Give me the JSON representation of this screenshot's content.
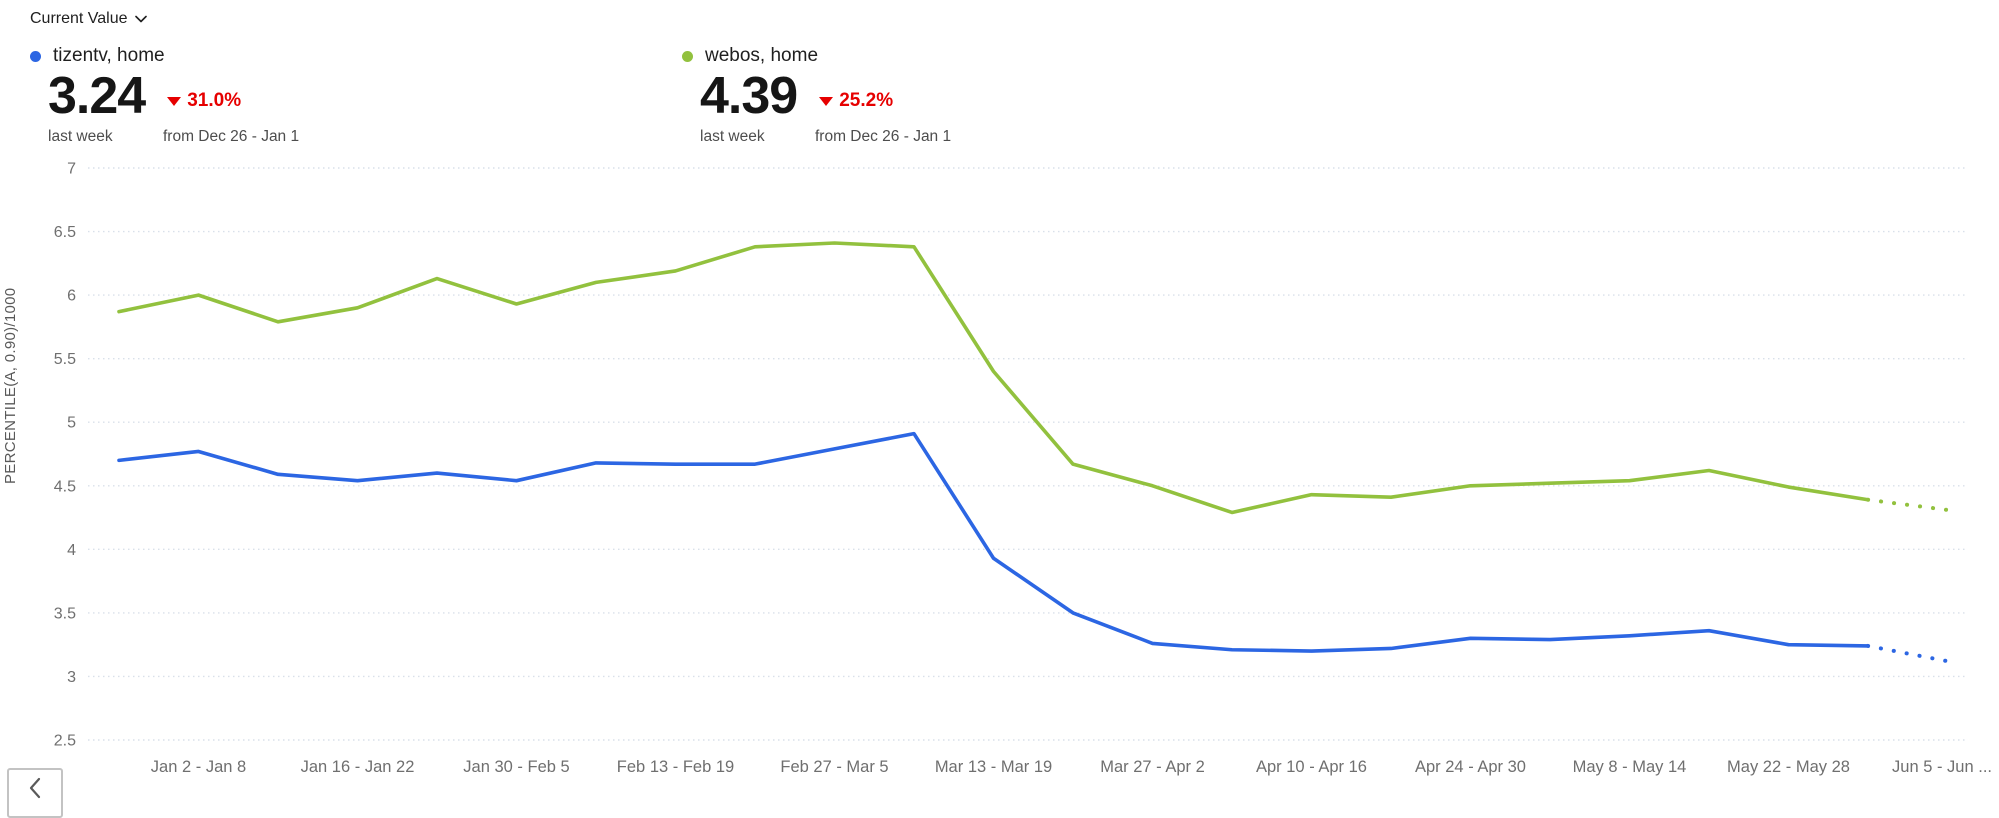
{
  "header": {
    "metric_selector_label": "Current Value"
  },
  "metrics": [
    {
      "series": "tizentv, home",
      "dot_color": "#2c66e3",
      "value": "3.24",
      "delta_direction": "down",
      "delta_pct": "31.0%",
      "period": "last week",
      "comparison": "from Dec 26 - Jan 1"
    },
    {
      "series": "webos, home",
      "dot_color": "#92c13e",
      "value": "4.39",
      "delta_direction": "down",
      "delta_pct": "25.2%",
      "period": "last week",
      "comparison": "from Dec 26 - Jan 1"
    }
  ],
  "colors": {
    "blue_series": "#2c66e3",
    "green_series": "#92c13e",
    "negative_red": "#e60000",
    "gridline": "#d9e0ea",
    "tick_text": "#6f6f6f"
  },
  "chart_data": {
    "type": "line",
    "title": "",
    "xlabel": "",
    "ylabel": "PERCENTILE(A, 0.90)/1000",
    "ylim": [
      2.5,
      7
    ],
    "yticks": [
      2.5,
      3,
      3.5,
      4,
      4.5,
      5,
      5.5,
      6,
      6.5,
      7
    ],
    "ytick_labels": [
      "2.5",
      "3",
      "3.5",
      "4",
      "4.5",
      "5",
      "5.5",
      "6",
      "6.5",
      "7"
    ],
    "grid": "horizontal-dotted",
    "legend_position": "top",
    "x_point_count": 24,
    "x_first_week": "Dec 26 - Jan 1",
    "x_tick_indices": [
      1,
      3,
      5,
      7,
      9,
      11,
      13,
      15,
      17,
      19,
      21,
      23
    ],
    "x_tick_labels": [
      "Jan 2 - Jan 8",
      "Jan 16 - Jan 22",
      "Jan 30 - Feb 5",
      "Feb 13 - Feb 19",
      "Feb 27 - Mar 5",
      "Mar 13 - Mar 19",
      "Mar 27 - Apr 2",
      "Apr 10 - Apr 16",
      "Apr 24 - Apr 30",
      "May 8 - May 14",
      "May 22 - May 28",
      "Jun 5 - Jun ..."
    ],
    "series": [
      {
        "name": "tizentv, home",
        "color": "#2c66e3",
        "values": [
          4.7,
          4.77,
          4.59,
          4.54,
          4.6,
          4.54,
          4.68,
          4.67,
          4.67,
          4.79,
          4.91,
          3.93,
          3.5,
          3.26,
          3.21,
          3.2,
          3.22,
          3.3,
          3.29,
          3.32,
          3.36,
          3.25,
          3.24
        ],
        "projected_values": [
          3.12
        ]
      },
      {
        "name": "webos, home",
        "color": "#92c13e",
        "values": [
          5.87,
          6.0,
          5.79,
          5.9,
          6.13,
          5.93,
          6.1,
          6.19,
          6.38,
          6.41,
          6.38,
          5.4,
          4.67,
          4.5,
          4.29,
          4.43,
          4.41,
          4.5,
          4.52,
          4.54,
          4.62,
          4.49,
          4.39
        ],
        "projected_values": [
          4.31
        ]
      }
    ]
  },
  "pagination": {
    "prev_label": "‹"
  }
}
